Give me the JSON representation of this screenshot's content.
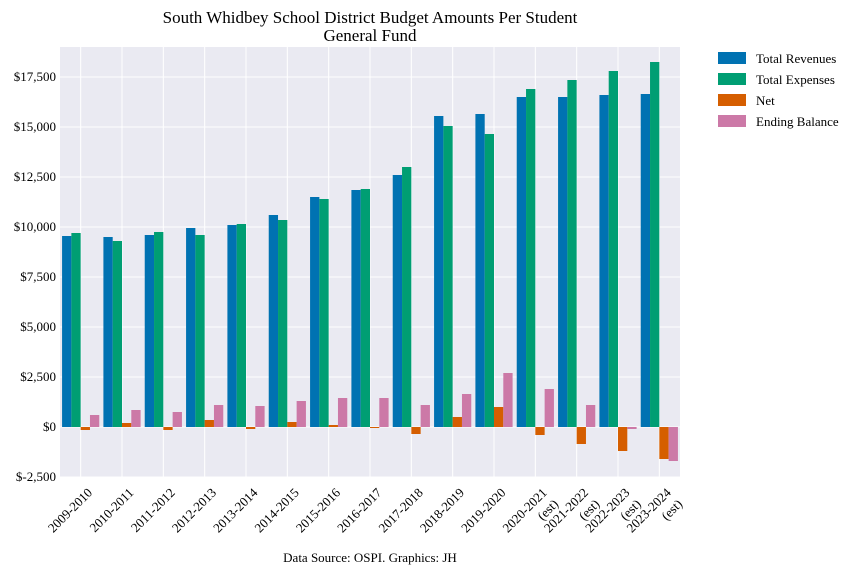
{
  "chart_data": {
    "type": "bar",
    "title": "South Whidbey School District Budget Amounts Per Student",
    "subtitle": "General Fund",
    "caption": "Data Source: OSPI. Graphics: JH",
    "categories": [
      "2009-2010",
      "2010-2011",
      "2011-2012",
      "2012-2013",
      "2013-2014",
      "2014-2015",
      "2015-2016",
      "2016-2017",
      "2017-2018",
      "2018-2019",
      "2019-2020",
      "2020-2021\n(est)",
      "2021-2022\n(est)",
      "2022-2023\n(est)",
      "2023-2024\n(est)"
    ],
    "series": [
      {
        "name": "Total Revenues",
        "color": "#0072B2",
        "values": [
          9550,
          9500,
          9600,
          9950,
          10100,
          10600,
          11500,
          11850,
          12600,
          15550,
          15650,
          16500,
          16500,
          16600,
          16650
        ]
      },
      {
        "name": "Total Expenses",
        "color": "#009E73",
        "values": [
          9700,
          9300,
          9750,
          9600,
          10150,
          10350,
          11400,
          11900,
          13000,
          15050,
          14650,
          16900,
          17350,
          17800,
          18250
        ]
      },
      {
        "name": "Net",
        "color": "#D55E00",
        "values": [
          -150,
          200,
          -150,
          350,
          -100,
          250,
          100,
          -50,
          -350,
          500,
          1000,
          -400,
          -850,
          -1200,
          -1600
        ]
      },
      {
        "name": "Ending Balance",
        "color": "#CC79A7",
        "values": [
          600,
          850,
          750,
          1100,
          1050,
          1300,
          1450,
          1450,
          1100,
          1650,
          2700,
          1900,
          1100,
          -100,
          -1700
        ]
      }
    ],
    "ylim": [
      -2500,
      19000
    ],
    "yticks": [
      -2500,
      0,
      2500,
      5000,
      7500,
      10000,
      12500,
      15000,
      17500
    ],
    "ytick_labels": [
      "$-2,500",
      "$0",
      "$2,500",
      "$5,000",
      "$7,500",
      "$10,000",
      "$12,500",
      "$15,000",
      "$17,500"
    ],
    "grid": true,
    "legend_position": "outside-top-right",
    "xlabel": "",
    "ylabel": ""
  }
}
